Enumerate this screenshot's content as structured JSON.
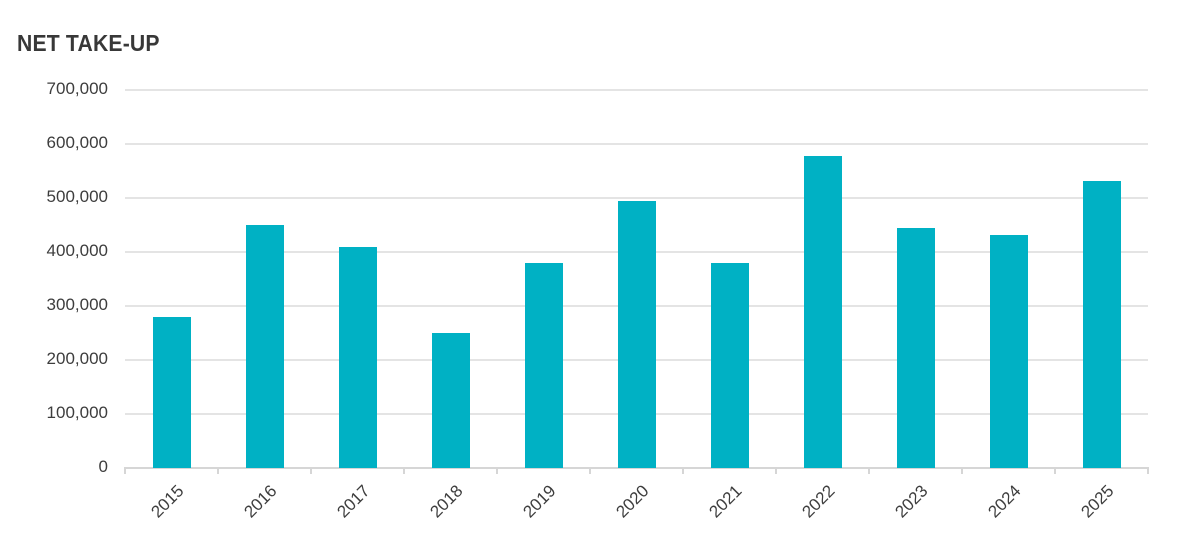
{
  "chart_data": {
    "type": "bar",
    "title": "NET TAKE-UP",
    "categories": [
      "2015",
      "2016",
      "2017",
      "2018",
      "2019",
      "2020",
      "2021",
      "2022",
      "2023",
      "2024",
      "2025"
    ],
    "values": [
      280000,
      450000,
      408000,
      249000,
      379000,
      493000,
      379000,
      577000,
      443000,
      430000,
      531000
    ],
    "xlabel": "",
    "ylabel": "",
    "ylim": [
      0,
      700000
    ],
    "ytick_step": 100000,
    "ytick_labels": [
      "0",
      "100,000",
      "200,000",
      "300,000",
      "400,000",
      "500,000",
      "600,000",
      "700,000"
    ],
    "grid": true,
    "legend": false
  },
  "colors": {
    "bar": "#00B1C4",
    "title_text": "#383838",
    "axis_text": "#3D3D3D",
    "gridline": "#E4E4E4",
    "axis_line": "#D6D6D6",
    "background": "#FFFFFF"
  }
}
